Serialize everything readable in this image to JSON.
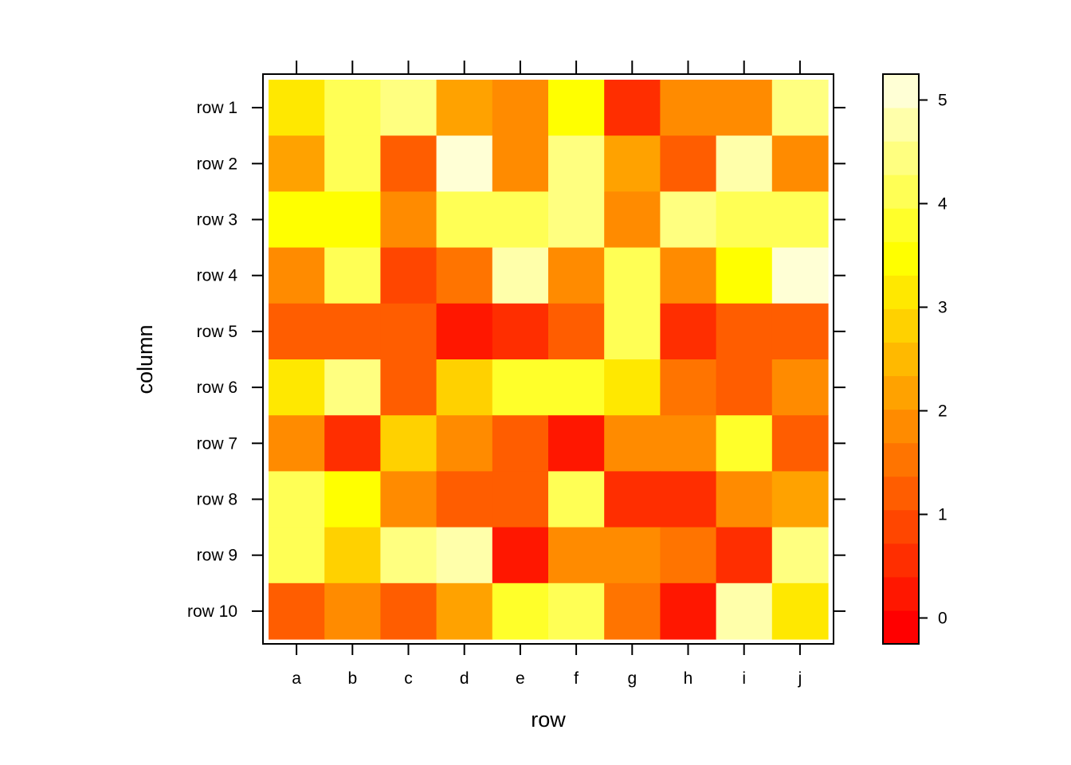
{
  "chart_data": {
    "type": "heatmap",
    "xlabel": "row",
    "ylabel": "column",
    "x_categories": [
      "a",
      "b",
      "c",
      "d",
      "e",
      "f",
      "g",
      "h",
      "i",
      "j"
    ],
    "y_categories": [
      "row 1",
      "row 2",
      "row 3",
      "row 4",
      "row 5",
      "row 6",
      "row 7",
      "row 8",
      "row 9",
      "row 10"
    ],
    "values": [
      [
        3.1,
        4.1,
        4.6,
        2.3,
        1.9,
        3.6,
        0.6,
        1.7,
        1.7,
        4.3
      ],
      [
        2.3,
        4.1,
        1.1,
        5.2,
        1.9,
        4.5,
        2.3,
        1.1,
        4.9,
        1.7
      ],
      [
        3.6,
        3.6,
        1.7,
        4.1,
        4.1,
        4.5,
        2.0,
        4.5,
        4.2,
        4.0
      ],
      [
        2.0,
        4.1,
        1.0,
        1.6,
        4.9,
        2.0,
        4.2,
        2.0,
        3.6,
        5.0
      ],
      [
        1.3,
        1.1,
        1.1,
        0.1,
        0.6,
        1.1,
        4.2,
        0.6,
        1.3,
        1.3
      ],
      [
        3.1,
        4.3,
        1.1,
        2.8,
        3.7,
        3.7,
        3.1,
        1.6,
        1.3,
        1.7
      ],
      [
        1.7,
        0.6,
        2.8,
        1.9,
        1.3,
        0.1,
        1.7,
        2.0,
        3.7,
        1.1
      ],
      [
        4.1,
        3.6,
        1.9,
        1.3,
        1.3,
        4.2,
        0.5,
        0.5,
        1.7,
        2.3
      ],
      [
        4.2,
        2.8,
        4.6,
        4.9,
        0.1,
        1.7,
        1.9,
        1.6,
        0.6,
        4.5
      ],
      [
        1.1,
        1.9,
        1.1,
        2.3,
        3.7,
        4.2,
        1.6,
        0.1,
        4.9,
        3.1
      ]
    ],
    "colorbar": {
      "range": [
        -0.25,
        5.25
      ],
      "ticks": [
        "0",
        "1",
        "2",
        "3",
        "4",
        "5"
      ],
      "tick_values": [
        0,
        1,
        2,
        3,
        4,
        5
      ],
      "colors": [
        "#FF0000",
        "#FF1700",
        "#FF2E00",
        "#FF4600",
        "#FF5D00",
        "#FF7400",
        "#FF8B00",
        "#FFA200",
        "#FFB900",
        "#FFD100",
        "#FFE800",
        "#FFFF00",
        "#FFFF2A",
        "#FFFF55",
        "#FFFF80",
        "#FFFFAA",
        "#FFFFD5"
      ],
      "colorscale": "heat.colors"
    },
    "grid": false
  }
}
